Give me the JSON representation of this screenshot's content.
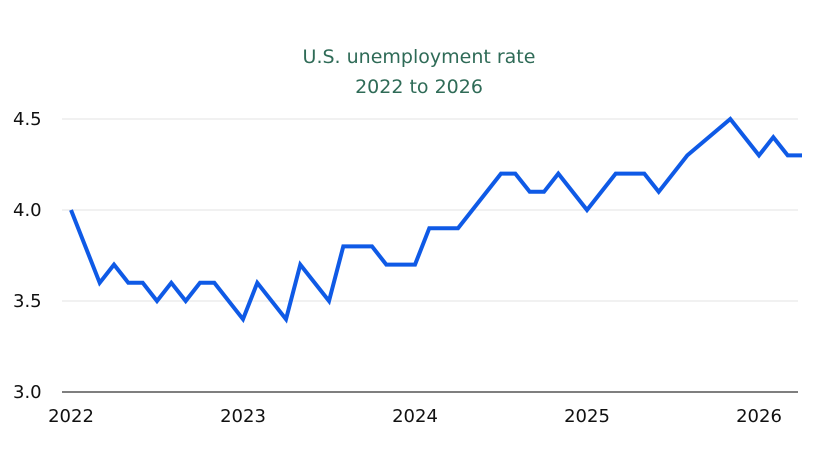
{
  "chart_data": {
    "type": "line",
    "title": "U.S. unemployment rate",
    "subtitle": "2022 to 2026",
    "xlabel": "",
    "ylabel": "",
    "ylim": [
      3.0,
      4.5
    ],
    "yticks": [
      "3.0",
      "3.5",
      "4.0",
      "4.5"
    ],
    "xticks": [
      "2022",
      "2023",
      "2024",
      "2025",
      "2026"
    ],
    "grid": true,
    "color": "#0f5ae6",
    "series": [
      {
        "x": [
          "2022-01",
          "2022-03",
          "2022-04",
          "2022-05",
          "2022-06",
          "2022-07",
          "2022-08",
          "2022-09",
          "2022-10",
          "2022-11",
          "2023-01",
          "2023-02",
          "2023-04",
          "2023-05",
          "2023-07",
          "2023-08",
          "2023-10",
          "2023-11",
          "2024-01",
          "2024-02",
          "2024-04",
          "2024-07",
          "2024-08",
          "2024-09",
          "2024-10",
          "2024-11",
          "2025-01",
          "2025-03",
          "2025-05",
          "2025-06",
          "2025-08",
          "2025-11",
          "2026-01",
          "2026-02",
          "2026-03",
          "2026-04"
        ],
        "values": [
          4.0,
          3.6,
          3.7,
          3.6,
          3.6,
          3.5,
          3.6,
          3.5,
          3.6,
          3.6,
          3.4,
          3.6,
          3.4,
          3.7,
          3.5,
          3.8,
          3.8,
          3.7,
          3.7,
          3.9,
          3.9,
          4.2,
          4.2,
          4.1,
          4.1,
          4.2,
          4.0,
          4.2,
          4.2,
          4.1,
          4.3,
          4.5,
          4.3,
          4.4,
          4.3,
          4.3
        ]
      }
    ]
  }
}
